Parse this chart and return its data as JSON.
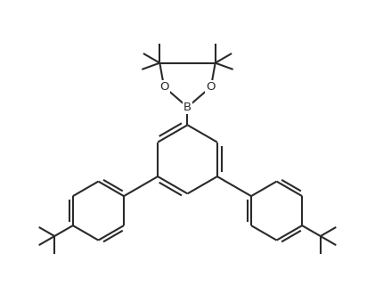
{
  "background_color": "#ffffff",
  "line_color": "#2a2a2a",
  "line_width": 1.5,
  "figsize": [
    4.21,
    3.21
  ],
  "dpi": 100,
  "xlim": [
    -4.8,
    4.8
  ],
  "ylim": [
    -3.8,
    4.8
  ]
}
